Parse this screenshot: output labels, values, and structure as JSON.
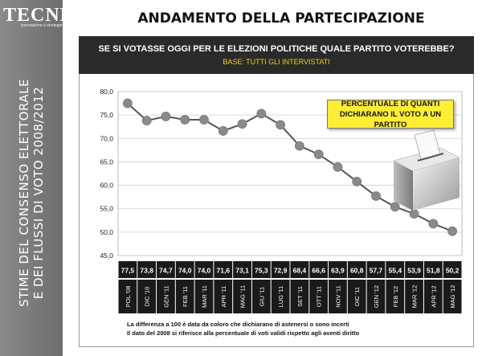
{
  "brand": {
    "name": "TECNÈ",
    "tagline": "innovazione e strategie"
  },
  "sidebar": {
    "title_line1": "STIME DEL CONSENSO ELETTORALE",
    "title_line2": "E DEI FLUSSI DI VOTO 2008/2012"
  },
  "page_title": "ANDAMENTO DELLA PARTECIPAZIONE",
  "chart_data": {
    "type": "line",
    "title": "SE SI VOTASSE OGGI PER LE ELEZIONI POLITICHE QUALE PARTITO VOTEREBBE?",
    "subtitle": "BASE: TUTTI GLI INTERVISTATI",
    "categories": [
      "POL '08",
      "DIC '10",
      "GEN '11",
      "FEB '11",
      "MAR '11",
      "APR '11",
      "MAG '11",
      "GIU '11",
      "LUG '11",
      "SET '11",
      "OTT '11",
      "NOV '11",
      "DIC '11",
      "GEN '12",
      "FEB '12",
      "MAR '12",
      "APR '12",
      "MAG '12"
    ],
    "values": [
      77.5,
      73.8,
      74.7,
      74.0,
      74.0,
      71.6,
      73.1,
      75.3,
      72.9,
      68.4,
      66.6,
      63.9,
      60.8,
      57.7,
      55.4,
      53.9,
      51.8,
      50.2
    ],
    "value_labels": [
      "77,5",
      "73,8",
      "74,7",
      "74,0",
      "74,0",
      "71,6",
      "73,1",
      "75,3",
      "72,9",
      "68,4",
      "66,6",
      "63,9",
      "60,8",
      "57,7",
      "55,4",
      "53,9",
      "51,8",
      "50,2"
    ],
    "yticks": [
      "80,0",
      "75,0",
      "70,0",
      "65,0",
      "60,0",
      "55,0",
      "50,0",
      "45,0"
    ],
    "ylim": [
      45,
      80
    ],
    "grid": true,
    "callout": "PERCENTUALE DI QUANTI DICHIARANO IL VOTO A UN PARTITO",
    "line_color": "#555555",
    "marker_color": "#8a8a8a"
  },
  "notes": {
    "line1": "La differenza a 100 è data da coloro che dichiarano di astenersi o sono incerti",
    "line2": "Il dato del 2008 si riferisce alla percentuale di voti validi rispetto agli aventi diritto"
  }
}
